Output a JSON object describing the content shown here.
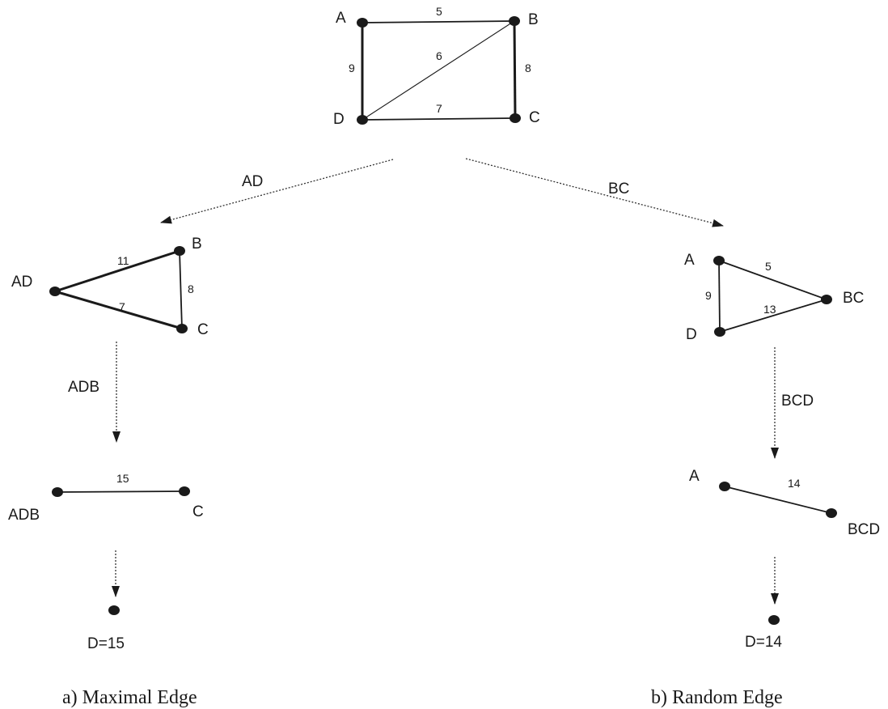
{
  "top_graph": {
    "nodes": {
      "a": "A",
      "b": "B",
      "c": "C",
      "d": "D"
    },
    "weights": {
      "ab": "5",
      "bd": "6",
      "bc": "8",
      "ad": "9",
      "dc": "7"
    }
  },
  "branch_labels": {
    "left": "AD",
    "right": "BC"
  },
  "left": {
    "step1": {
      "nodes": {
        "ad": "AD",
        "b": "B",
        "c": "C"
      },
      "weights": {
        "adb": "11",
        "bc": "8",
        "adc": "7"
      }
    },
    "step1_arrow_label": "ADB",
    "step2": {
      "nodes": {
        "adb": "ADB",
        "c": "C"
      },
      "weights": {
        "adbc": "15"
      }
    },
    "result": "D=15",
    "caption": "a) Maximal Edge"
  },
  "right": {
    "step1": {
      "nodes": {
        "a": "A",
        "bc": "BC",
        "d": "D"
      },
      "weights": {
        "abc": "5",
        "ad": "9",
        "dbc": "13"
      }
    },
    "step1_arrow_label": "BCD",
    "step2": {
      "nodes": {
        "a": "A",
        "bcd": "BCD"
      },
      "weights": {
        "abcd": "14"
      }
    },
    "result": "D=14",
    "caption": "b) Random Edge"
  }
}
